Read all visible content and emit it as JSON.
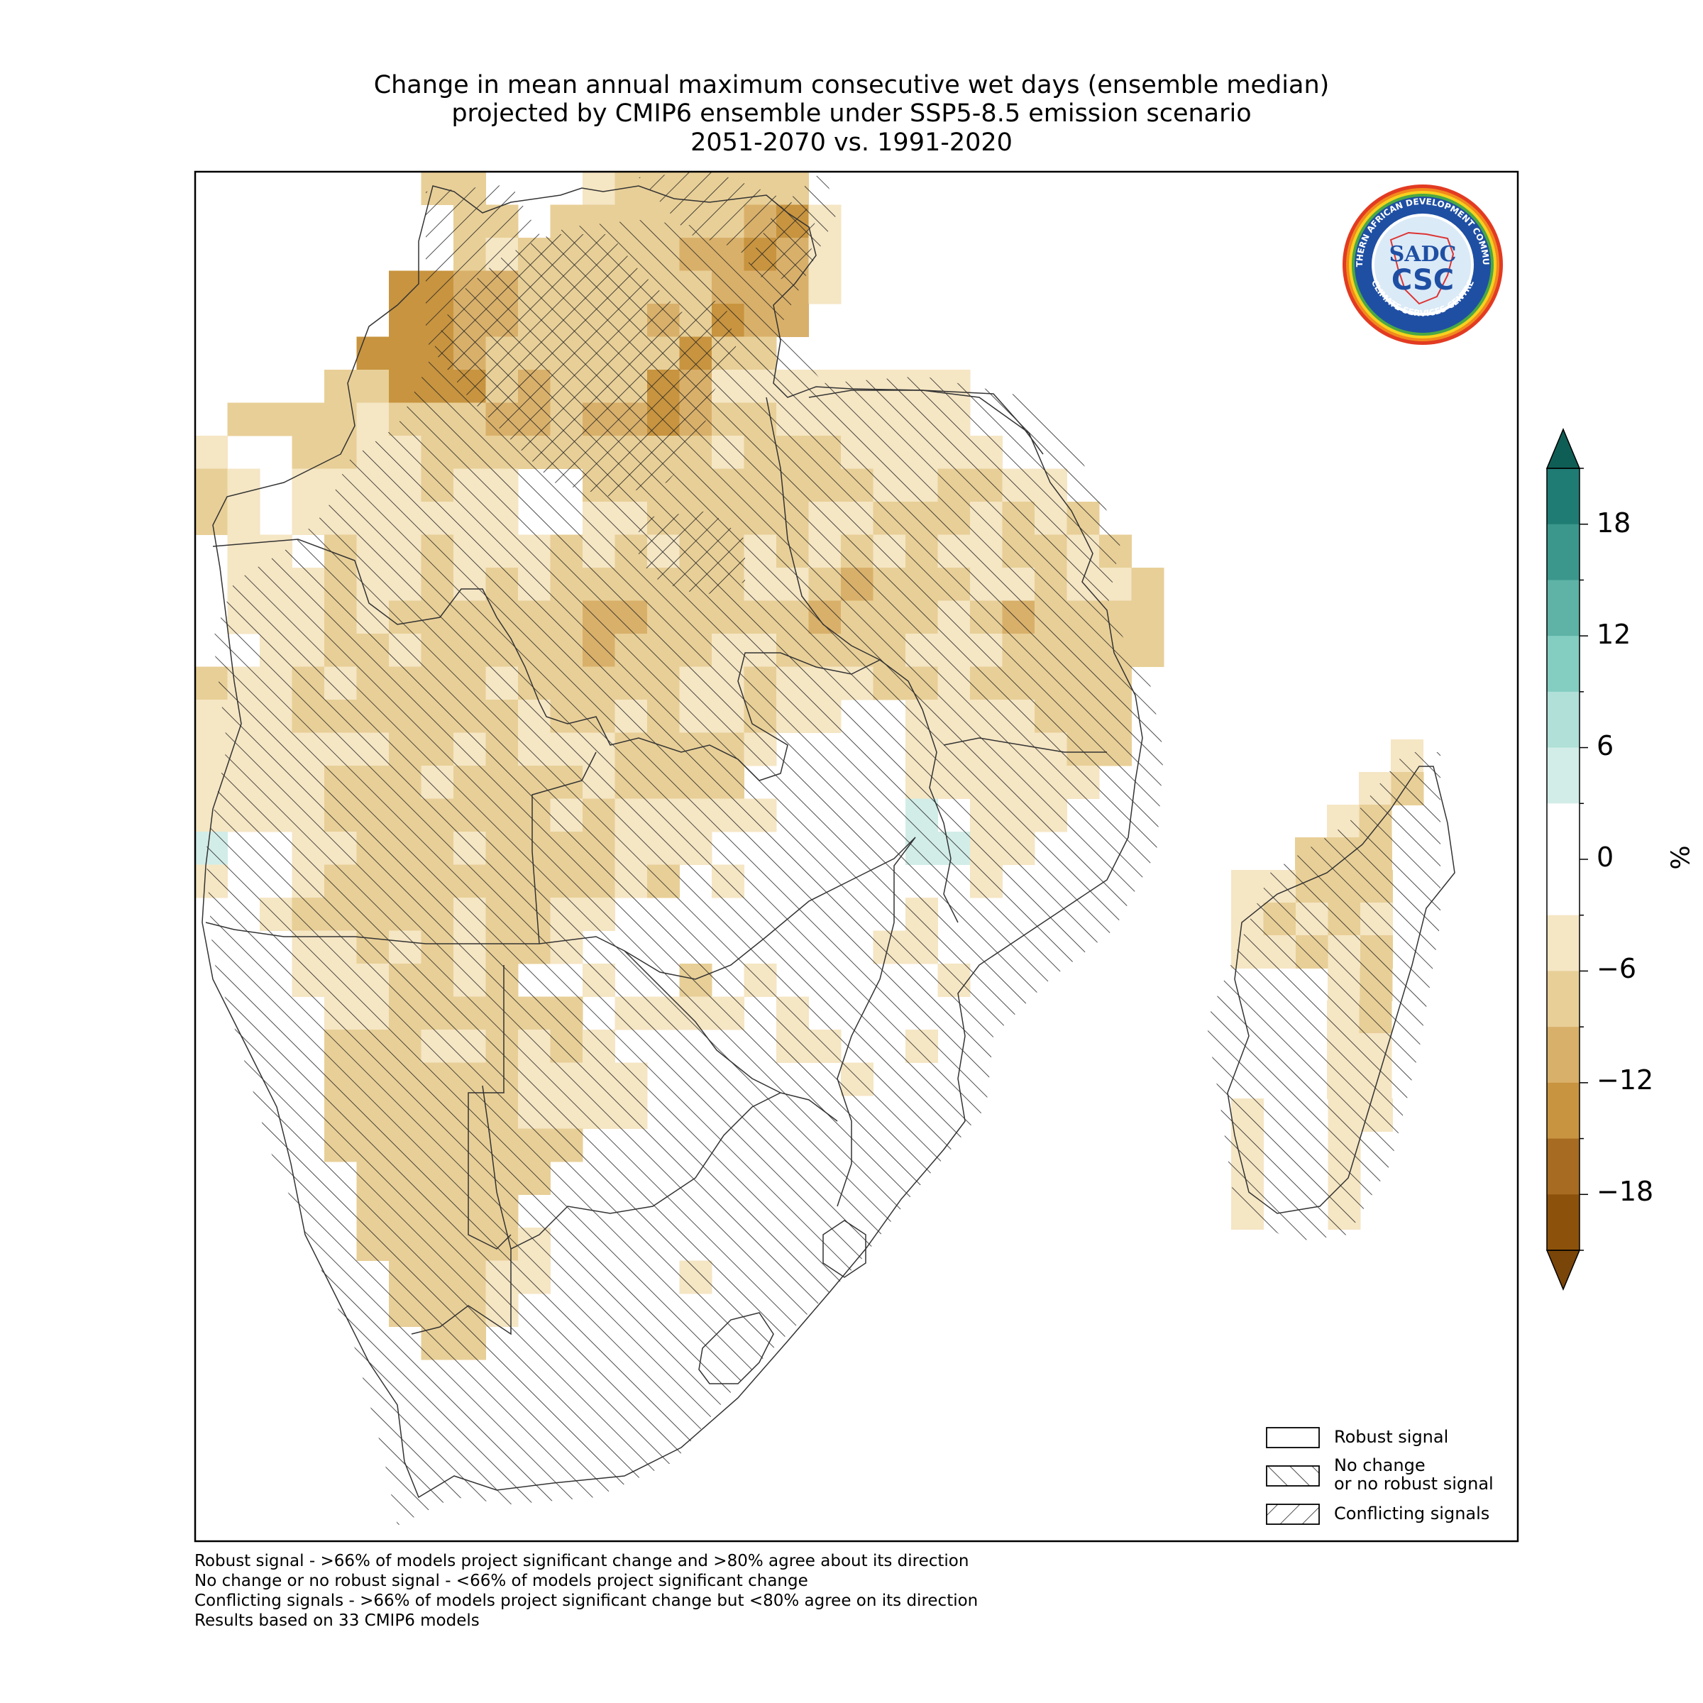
{
  "figure": {
    "title_lines": [
      "Change in mean annual maximum consecutive wet days (ensemble median)",
      "projected by CMIP6 ensemble under SSP5-8.5 emission scenario",
      "2051-2070 vs. 1991-2020"
    ]
  },
  "legend": {
    "items": [
      {
        "label_lines": [
          "Robust signal"
        ],
        "hatch": "none"
      },
      {
        "label_lines": [
          "No change",
          "or no robust signal"
        ],
        "hatch": "forward-diagonal"
      },
      {
        "label_lines": [
          "Conflicting signals"
        ],
        "hatch": "backward-diagonal"
      }
    ]
  },
  "colorbar": {
    "unit": "%",
    "ticks": [
      "18",
      "12",
      "6",
      "0",
      "−6",
      "−12",
      "−18"
    ],
    "tick_values": [
      18,
      12,
      6,
      0,
      -6,
      -12,
      -18
    ],
    "range": [
      -21,
      21
    ],
    "extend": "both",
    "colors": [
      "#8c510a",
      "#a86b22",
      "#c8943f",
      "#d9b06a",
      "#e8cf97",
      "#f5e6c4",
      "#ffffff",
      "#ffffff",
      "#d2ede8",
      "#b0e0d8",
      "#84cdc1",
      "#5eb2a6",
      "#3b978c",
      "#1f7c74"
    ],
    "over_color": "#0f5e55",
    "under_color": "#7a4508"
  },
  "notes": [
    "Robust signal - >66% of models project significant change and >80% agree about its direction",
    "No change or no robust signal - <66% of models project significant change",
    "Conflicting signals - >66% of models project significant change but <80% agree on its direction",
    "Results based on 33 CMIP6 models"
  ],
  "logo": {
    "top_text": "SOUTHERN AFRICAN DEVELOPMENT COMMUNITY",
    "bottom_text": "CLIMATE SERVICES CENTRE",
    "mark_top": "SADC",
    "mark_bottom": "CSC"
  },
  "map": {
    "region": "Southern Africa (SADC) and Madagascar",
    "dominant_signal": "decrease of about -3 to -12 %, strongest (below -15 %) in the north",
    "colors": {
      "c1": "#f5e6c4",
      "c2": "#e8cf97",
      "c3": "#d9b06a",
      "c4": "#c8943f",
      "c5": "#a86b22",
      "pos": "#d2ede8"
    }
  }
}
